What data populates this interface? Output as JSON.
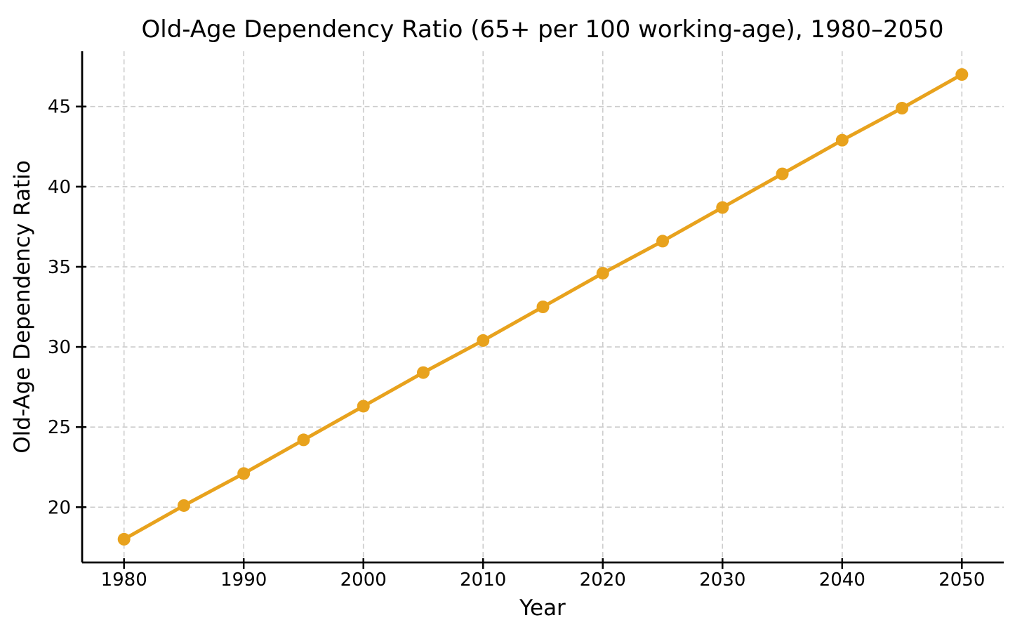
{
  "figure": {
    "background_color": "#ffffff",
    "text_color": "#000000"
  },
  "chart_data": {
    "type": "line",
    "title": "Old-Age Dependency Ratio (65+ per 100 working-age), 1980–2050",
    "xlabel": "Year",
    "ylabel": "Old-Age Dependency Ratio",
    "x": [
      1980,
      1985,
      1990,
      1995,
      2000,
      2005,
      2010,
      2015,
      2020,
      2025,
      2030,
      2035,
      2040,
      2045,
      2050
    ],
    "series": [
      {
        "name": "Old-Age Dependency Ratio",
        "values": [
          18.0,
          20.1,
          22.1,
          24.2,
          26.3,
          28.4,
          30.4,
          32.5,
          34.6,
          36.6,
          38.7,
          40.8,
          42.9,
          44.9,
          47.0
        ],
        "color": "#E8A21D",
        "marker": "circle",
        "marker_radius": 9,
        "line_width": 5
      }
    ],
    "xlim": [
      1976.5,
      2053.5
    ],
    "ylim": [
      16.55,
      48.45
    ],
    "xticks": [
      1980,
      1990,
      2000,
      2010,
      2020,
      2030,
      2040,
      2050
    ],
    "yticks": [
      20,
      25,
      30,
      35,
      40,
      45
    ],
    "grid": true,
    "grid_color": "#cccccc",
    "grid_style": "dashed",
    "axis_color": "#000000",
    "legend_position": "none"
  }
}
